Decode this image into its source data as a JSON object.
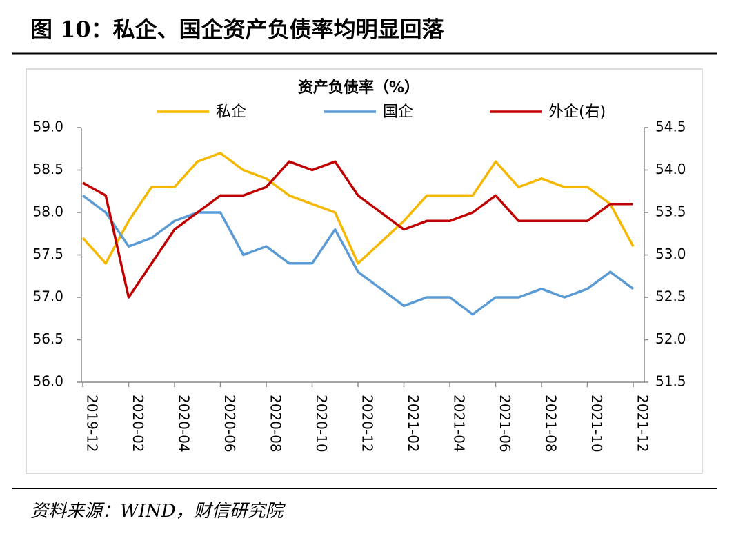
{
  "header": {
    "title": "图 10：私企、国企资产负债率均明显回落"
  },
  "chart_data": {
    "type": "line",
    "title": "资产负债率（%）",
    "categories": [
      "2019-12",
      null,
      "2020-02",
      null,
      "2020-04",
      null,
      "2020-06",
      null,
      "2020-08",
      null,
      "2020-10",
      null,
      "2020-12",
      null,
      "2021-02",
      null,
      "2021-04",
      null,
      "2021-06",
      null,
      "2021-08",
      null,
      "2021-10",
      null,
      "2021-12"
    ],
    "series": [
      {
        "name": "私企",
        "color": "#f5b800",
        "values": [
          57.7,
          57.4,
          57.9,
          58.3,
          58.3,
          58.6,
          58.7,
          58.5,
          58.4,
          58.2,
          58.1,
          58.0,
          57.4,
          57.65,
          57.9,
          58.2,
          58.2,
          58.2,
          58.6,
          58.3,
          58.4,
          58.3,
          58.3,
          58.1,
          57.6
        ]
      },
      {
        "name": "国企",
        "color": "#5b9bd5",
        "values": [
          58.2,
          58.0,
          57.6,
          57.7,
          57.9,
          58.0,
          58.0,
          57.5,
          57.6,
          57.4,
          57.4,
          57.8,
          57.3,
          57.1,
          56.9,
          57.0,
          57.0,
          56.8,
          57.0,
          57.0,
          57.1,
          57.0,
          57.1,
          57.3,
          57.1
        ]
      },
      {
        "name": "外企(右)",
        "color": "#c00000",
        "axis": "y2",
        "values": [
          53.85,
          53.7,
          52.5,
          52.9,
          53.3,
          53.5,
          53.7,
          53.7,
          53.8,
          54.1,
          54.0,
          54.1,
          53.7,
          53.5,
          53.3,
          53.4,
          53.4,
          53.5,
          53.7,
          53.4,
          53.4,
          53.4,
          53.4,
          53.6,
          53.6
        ]
      }
    ],
    "ylim": [
      56.0,
      59.0
    ],
    "yticks": [
      {
        "value": 56,
        "label": "56.0"
      },
      {
        "value": 56.5,
        "label": "56.5"
      },
      {
        "value": 57,
        "label": "57.0"
      },
      {
        "value": 57.5,
        "label": "57.5"
      },
      {
        "value": 58,
        "label": "58.0"
      },
      {
        "value": 58.5,
        "label": "58.5"
      },
      {
        "value": 59,
        "label": "59.0"
      }
    ],
    "y2lim": [
      51.5,
      54.5
    ],
    "y2ticks": [
      {
        "value": 51.5,
        "label": "51.5"
      },
      {
        "value": 52,
        "label": "52.0"
      },
      {
        "value": 52.5,
        "label": "52.5"
      },
      {
        "value": 53,
        "label": "53.0"
      },
      {
        "value": 53.5,
        "label": "53.5"
      },
      {
        "value": 54,
        "label": "54.0"
      },
      {
        "value": 54.5,
        "label": "54.5"
      }
    ]
  },
  "footer": {
    "source": "资料来源：WIND，财信研究院"
  }
}
